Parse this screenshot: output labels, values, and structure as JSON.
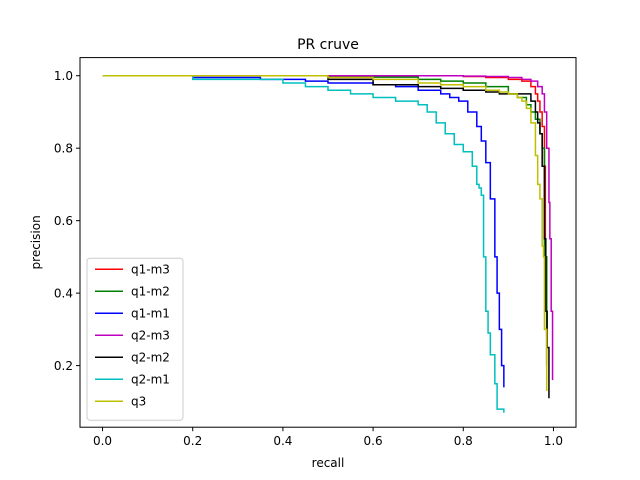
{
  "chart_data": {
    "type": "line",
    "title": "PR cruve",
    "xlabel": "recall",
    "ylabel": "precision",
    "xlim": [
      -0.05,
      1.05
    ],
    "ylim": [
      0.03,
      1.05
    ],
    "x_ticks": [
      0.0,
      0.2,
      0.4,
      0.6,
      0.8,
      1.0
    ],
    "y_ticks": [
      0.2,
      0.4,
      0.6,
      0.8,
      1.0
    ],
    "x_tick_labels": [
      "0.0",
      "0.2",
      "0.4",
      "0.6",
      "0.8",
      "1.0"
    ],
    "y_tick_labels": [
      "0.2",
      "0.4",
      "0.6",
      "0.8",
      "1.0"
    ],
    "grid": false,
    "legend_position": "lower-left",
    "series": [
      {
        "name": "q1-m3",
        "color": "#ff0000",
        "x": [
          0.0,
          0.3,
          0.6,
          0.7,
          0.8,
          0.85,
          0.9,
          0.93,
          0.95,
          0.96,
          0.965,
          0.97,
          0.975,
          0.98,
          0.982,
          0.985
        ],
        "y": [
          1.0,
          1.0,
          1.0,
          1.0,
          0.998,
          0.995,
          0.99,
          0.985,
          0.97,
          0.95,
          0.93,
          0.9,
          0.86,
          0.75,
          0.5,
          0.2
        ]
      },
      {
        "name": "q1-m2",
        "color": "#008000",
        "x": [
          0.0,
          0.3,
          0.5,
          0.6,
          0.7,
          0.75,
          0.8,
          0.85,
          0.9,
          0.92,
          0.94,
          0.95,
          0.96,
          0.97,
          0.975,
          0.98,
          0.985
        ],
        "y": [
          1.0,
          1.0,
          0.998,
          0.996,
          0.99,
          0.985,
          0.98,
          0.97,
          0.95,
          0.94,
          0.92,
          0.9,
          0.88,
          0.84,
          0.8,
          0.5,
          0.2
        ]
      },
      {
        "name": "q1-m1",
        "color": "#0000ff",
        "x": [
          0.0,
          0.2,
          0.35,
          0.45,
          0.5,
          0.6,
          0.65,
          0.7,
          0.75,
          0.77,
          0.79,
          0.81,
          0.83,
          0.84,
          0.85,
          0.86,
          0.87,
          0.875,
          0.88,
          0.885,
          0.89
        ],
        "y": [
          1.0,
          0.995,
          0.99,
          0.985,
          0.98,
          0.975,
          0.97,
          0.96,
          0.95,
          0.94,
          0.93,
          0.9,
          0.86,
          0.82,
          0.76,
          0.66,
          0.5,
          0.4,
          0.3,
          0.2,
          0.14
        ]
      },
      {
        "name": "q2-m3",
        "color": "#bf00bf",
        "x": [
          0.0,
          0.5,
          0.7,
          0.8,
          0.85,
          0.9,
          0.93,
          0.95,
          0.965,
          0.975,
          0.98,
          0.985,
          0.99,
          0.992,
          0.995,
          0.998
        ],
        "y": [
          1.0,
          1.0,
          1.0,
          0.999,
          0.998,
          0.995,
          0.99,
          0.985,
          0.97,
          0.95,
          0.9,
          0.8,
          0.65,
          0.55,
          0.35,
          0.16
        ]
      },
      {
        "name": "q2-m2",
        "color": "#000000",
        "x": [
          0.0,
          0.3,
          0.5,
          0.6,
          0.7,
          0.75,
          0.8,
          0.85,
          0.88,
          0.9,
          0.93,
          0.95,
          0.96,
          0.965,
          0.97,
          0.975,
          0.98,
          0.983,
          0.986,
          0.99
        ],
        "y": [
          1.0,
          1.0,
          0.99,
          0.975,
          0.97,
          0.965,
          0.96,
          0.955,
          0.95,
          0.95,
          0.95,
          0.93,
          0.9,
          0.87,
          0.84,
          0.75,
          0.55,
          0.35,
          0.25,
          0.11
        ]
      },
      {
        "name": "q2-m1",
        "color": "#00bfbf",
        "x": [
          0.0,
          0.2,
          0.4,
          0.45,
          0.5,
          0.55,
          0.6,
          0.65,
          0.7,
          0.72,
          0.74,
          0.76,
          0.78,
          0.8,
          0.82,
          0.83,
          0.835,
          0.84,
          0.845,
          0.85,
          0.855,
          0.86,
          0.87,
          0.875,
          0.88,
          0.89
        ],
        "y": [
          1.0,
          0.99,
          0.98,
          0.97,
          0.96,
          0.95,
          0.94,
          0.93,
          0.92,
          0.9,
          0.87,
          0.84,
          0.81,
          0.79,
          0.75,
          0.7,
          0.69,
          0.67,
          0.5,
          0.35,
          0.29,
          0.23,
          0.15,
          0.08,
          0.08,
          0.07
        ]
      },
      {
        "name": "q3",
        "color": "#bfbf00",
        "x": [
          0.0,
          0.3,
          0.5,
          0.6,
          0.7,
          0.75,
          0.8,
          0.85,
          0.88,
          0.9,
          0.92,
          0.93,
          0.94,
          0.95,
          0.96,
          0.965,
          0.97,
          0.975,
          0.978,
          0.98,
          0.985
        ],
        "y": [
          1.0,
          1.0,
          0.995,
          0.99,
          0.98,
          0.975,
          0.97,
          0.96,
          0.955,
          0.95,
          0.94,
          0.93,
          0.91,
          0.87,
          0.78,
          0.7,
          0.66,
          0.53,
          0.5,
          0.3,
          0.13
        ]
      }
    ]
  }
}
